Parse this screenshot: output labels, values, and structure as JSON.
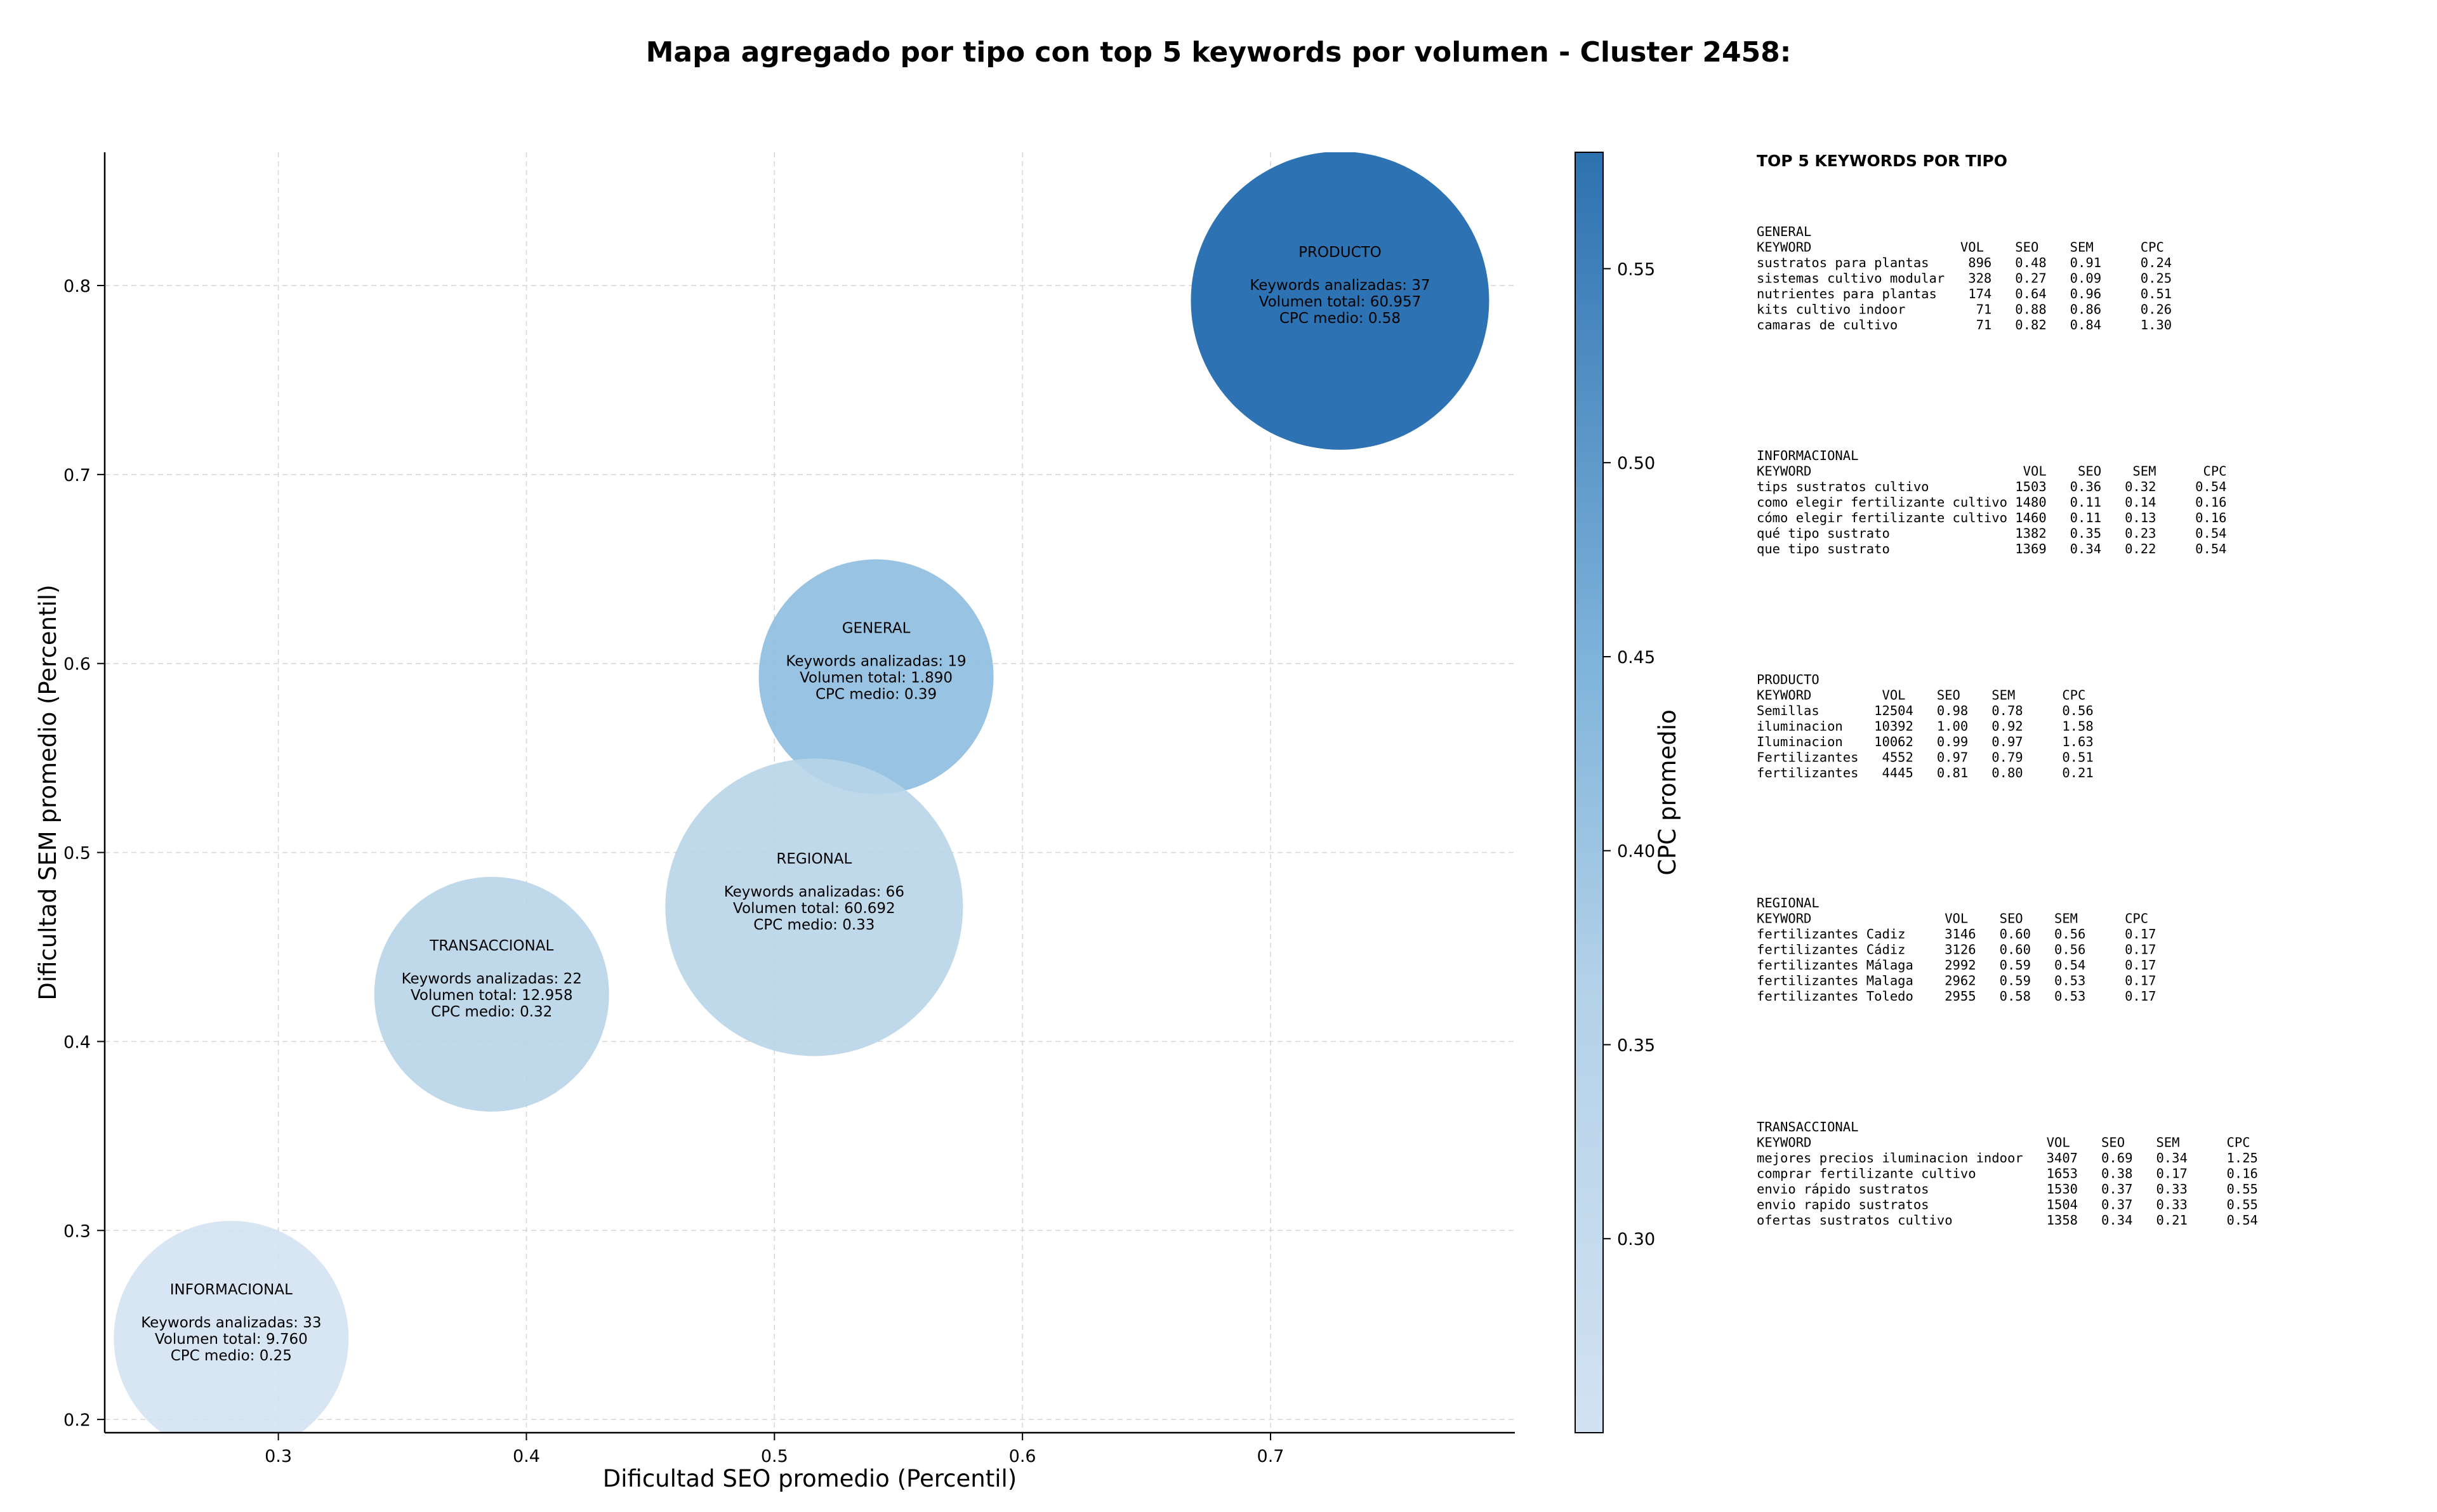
{
  "title": "Mapa agregado por tipo con top 5 keywords por volumen - Cluster 2458:",
  "chart_data": {
    "type": "scatter",
    "xlabel": "Dificultad SEO promedio (Percentil)",
    "ylabel": "Dificultad SEM promedio (Percentil)",
    "xlim": [
      0.23,
      0.7985
    ],
    "ylim": [
      0.193,
      0.8705
    ],
    "xticks": [
      0.3,
      0.4,
      0.5,
      0.6,
      0.7
    ],
    "yticks": [
      0.2,
      0.3,
      0.4,
      0.5,
      0.6,
      0.7,
      0.8
    ],
    "grid": true,
    "colorbar": {
      "label": "CPC promedio",
      "range": [
        0.25,
        0.58
      ],
      "ticks": [
        0.3,
        0.35,
        0.4,
        0.45,
        0.5,
        0.55
      ],
      "color_low": "#d2e2f2",
      "color_high": "#2d71b0"
    },
    "bubble_size_encodes": "Volumen total",
    "points": [
      {
        "name": "PRODUCTO",
        "x": 0.728,
        "y": 0.792,
        "keywords_label": "Keywords analizadas: 37",
        "volume_label": "Volumen total: 60.957",
        "cpc_label": "CPC medio: 0.58",
        "cpc": 0.58,
        "volume": 60957,
        "color": "#2d73b3"
      },
      {
        "name": "GENERAL",
        "x": 0.541,
        "y": 0.593,
        "keywords_label": "Keywords analizadas: 19",
        "volume_label": "Volumen total: 1.890",
        "cpc_label": "CPC medio: 0.39",
        "cpc": 0.39,
        "volume": 1890,
        "color": "#8fbedf"
      },
      {
        "name": "REGIONAL",
        "x": 0.516,
        "y": 0.471,
        "keywords_label": "Keywords analizadas: 66",
        "volume_label": "Volumen total: 60.692",
        "cpc_label": "CPC medio: 0.33",
        "cpc": 0.33,
        "volume": 60692,
        "color": "#b7d4e9"
      },
      {
        "name": "TRANSACCIONAL",
        "x": 0.386,
        "y": 0.425,
        "keywords_label": "Keywords analizadas: 22",
        "volume_label": "Volumen total: 12.958",
        "cpc_label": "CPC medio: 0.32",
        "cpc": 0.32,
        "volume": 12958,
        "color": "#b7d4e9"
      },
      {
        "name": "INFORMACIONAL",
        "x": 0.281,
        "y": 0.243,
        "keywords_label": "Keywords analizadas: 33",
        "volume_label": "Volumen total: 9.760",
        "cpc_label": "CPC medio: 0.25",
        "cpc": 0.25,
        "volume": 9760,
        "color": "#d2e2f2"
      }
    ]
  },
  "side_panel": {
    "heading": "TOP 5 KEYWORDS POR TIPO",
    "sections": [
      {
        "name": "GENERAL",
        "header": "KEYWORD                   VOL    SEO    SEM      CPC",
        "rows": [
          "sustratos para plantas     896   0.48   0.91     0.24",
          "sistemas cultivo modular   328   0.27   0.09     0.25",
          "nutrientes para plantas    174   0.64   0.96     0.51",
          "kits cultivo indoor         71   0.88   0.86     0.26",
          "camaras de cultivo          71   0.82   0.84     1.30"
        ]
      },
      {
        "name": "INFORMACIONAL",
        "header": "KEYWORD                           VOL    SEO    SEM      CPC",
        "rows": [
          "tips sustratos cultivo           1503   0.36   0.32     0.54",
          "como elegir fertilizante cultivo 1480   0.11   0.14     0.16",
          "cómo elegir fertilizante cultivo 1460   0.11   0.13     0.16",
          "qué tipo sustrato                1382   0.35   0.23     0.54",
          "que tipo sustrato                1369   0.34   0.22     0.54"
        ]
      },
      {
        "name": "PRODUCTO",
        "header": "KEYWORD         VOL    SEO    SEM      CPC",
        "rows": [
          "Semillas       12504   0.98   0.78     0.56",
          "iluminacion    10392   1.00   0.92     1.58",
          "Iluminacion    10062   0.99   0.97     1.63",
          "Fertilizantes   4552   0.97   0.79     0.51",
          "fertilizantes   4445   0.81   0.80     0.21"
        ]
      },
      {
        "name": "REGIONAL",
        "header": "KEYWORD                 VOL    SEO    SEM      CPC",
        "rows": [
          "fertilizantes Cadiz     3146   0.60   0.56     0.17",
          "fertilizantes Cádiz     3126   0.60   0.56     0.17",
          "fertilizantes Málaga    2992   0.59   0.54     0.17",
          "fertilizantes Malaga    2962   0.59   0.53     0.17",
          "fertilizantes Toledo    2955   0.58   0.53     0.17"
        ]
      },
      {
        "name": "TRANSACCIONAL",
        "header": "KEYWORD                              VOL    SEO    SEM      CPC",
        "rows": [
          "mejores precios iluminacion indoor   3407   0.69   0.34     1.25",
          "comprar fertilizante cultivo         1653   0.38   0.17     0.16",
          "envio rápido sustratos               1530   0.37   0.33     0.55",
          "envio rapido sustratos               1504   0.37   0.33     0.55",
          "ofertas sustratos cultivo            1358   0.34   0.21     0.54"
        ]
      }
    ]
  }
}
